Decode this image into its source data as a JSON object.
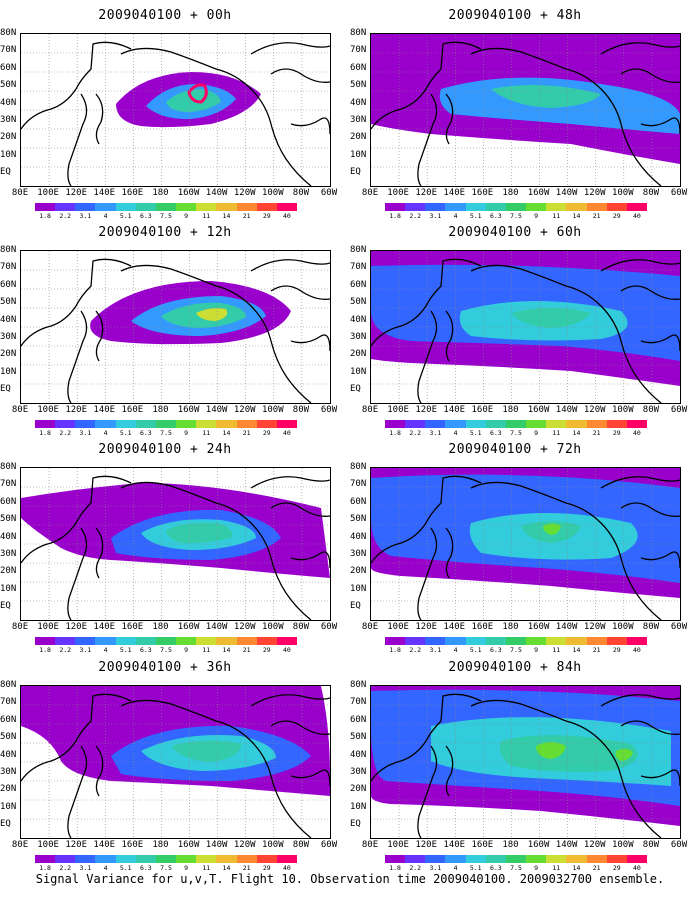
{
  "caption": "Signal Variance for u,v,T. Flight 10. Observation time 2009040100. 2009032700 ensemble.",
  "lat_labels": [
    "80N",
    "70N",
    "60N",
    "50N",
    "40N",
    "30N",
    "20N",
    "10N",
    "EQ"
  ],
  "lon_labels": [
    "80E",
    "100E",
    "120E",
    "140E",
    "160E",
    "180",
    "160W",
    "140W",
    "120W",
    "100W",
    "80W",
    "60W"
  ],
  "colorbar_labels": [
    "1.8",
    "2.2",
    "3.1",
    "4",
    "5.1",
    "6.3",
    "7.5",
    "9",
    "11",
    "14",
    "21",
    "29",
    "40"
  ],
  "colorbar_colors": [
    "#9900cc",
    "#6633ff",
    "#3366ff",
    "#3399ff",
    "#33ccdd",
    "#33ccaa",
    "#33cc66",
    "#66dd33",
    "#ccdd33",
    "#eebb33",
    "#ff8833",
    "#ff4433",
    "#ff0066"
  ],
  "panels": [
    {
      "title": "2009040100 + 00h",
      "lead": "00h"
    },
    {
      "title": "2009040100 + 48h",
      "lead": "48h"
    },
    {
      "title": "2009040100 + 12h",
      "lead": "12h"
    },
    {
      "title": "2009040100 + 60h",
      "lead": "60h"
    },
    {
      "title": "2009040100 + 24h",
      "lead": "24h"
    },
    {
      "title": "2009040100 + 72h",
      "lead": "72h"
    },
    {
      "title": "2009040100 + 36h",
      "lead": "36h"
    },
    {
      "title": "2009040100 + 84h",
      "lead": "84h"
    }
  ]
}
